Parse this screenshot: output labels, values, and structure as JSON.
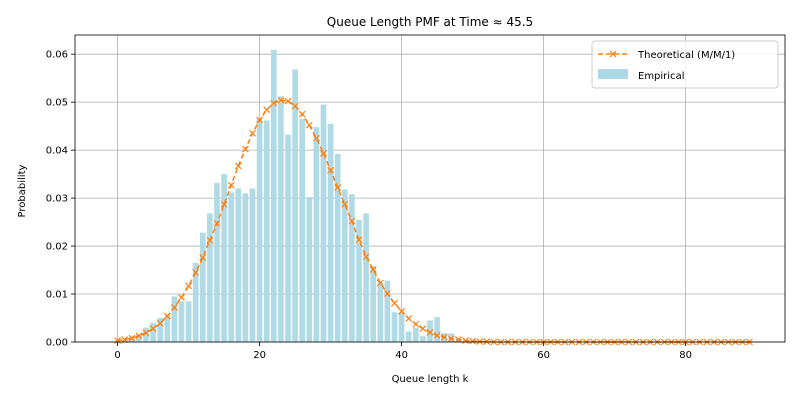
{
  "chart_data": {
    "type": "bar",
    "title": "Queue Length PMF at Time ≈ 45.5",
    "xlabel": "Queue length k",
    "ylabel": "Probability",
    "xlim": [
      -6,
      94
    ],
    "ylim": [
      0,
      0.064
    ],
    "xticks": [
      0,
      20,
      40,
      60,
      80
    ],
    "yticks": [
      0.0,
      0.01,
      0.02,
      0.03,
      0.04,
      0.05,
      0.06
    ],
    "ytick_labels": [
      "0.00",
      "0.01",
      "0.02",
      "0.03",
      "0.04",
      "0.05",
      "0.06"
    ],
    "grid": true,
    "legend_position": "top-right",
    "series": [
      {
        "name": "Empirical",
        "kind": "bar",
        "color": "#add8e6",
        "x": [
          0,
          1,
          2,
          3,
          4,
          5,
          6,
          7,
          8,
          9,
          10,
          11,
          12,
          13,
          14,
          15,
          16,
          17,
          18,
          19,
          20,
          21,
          22,
          23,
          24,
          25,
          26,
          27,
          28,
          29,
          30,
          31,
          32,
          33,
          34,
          35,
          36,
          37,
          38,
          39,
          40,
          41,
          42,
          43,
          44,
          45,
          46,
          47,
          48,
          49,
          50
        ],
        "values": [
          0.0003,
          0.0004,
          0.001,
          0.0016,
          0.003,
          0.004,
          0.005,
          0.0055,
          0.0095,
          0.0085,
          0.0085,
          0.0165,
          0.0228,
          0.0268,
          0.0332,
          0.035,
          0.0312,
          0.032,
          0.031,
          0.032,
          0.0465,
          0.0462,
          0.0609,
          0.0512,
          0.0432,
          0.0568,
          0.0465,
          0.0302,
          0.0448,
          0.0495,
          0.0455,
          0.0392,
          0.0318,
          0.0308,
          0.0255,
          0.0268,
          0.0158,
          0.0125,
          0.0128,
          0.0062,
          0.0062,
          0.0022,
          0.003,
          0.0012,
          0.0045,
          0.0052,
          0.0018,
          0.0018,
          0.0008,
          0.0005,
          0.0003
        ]
      },
      {
        "name": "Theoretical (M/M/1)",
        "kind": "line",
        "color": "#ff7f0e",
        "x": [
          0,
          1,
          2,
          3,
          4,
          5,
          6,
          7,
          8,
          9,
          10,
          11,
          12,
          13,
          14,
          15,
          16,
          17,
          18,
          19,
          20,
          21,
          22,
          23,
          24,
          25,
          26,
          27,
          28,
          29,
          30,
          31,
          32,
          33,
          34,
          35,
          36,
          37,
          38,
          39,
          40,
          41,
          42,
          43,
          44,
          45,
          46,
          47,
          48,
          49,
          50,
          51,
          52,
          53,
          54,
          55,
          56,
          57,
          58,
          59,
          60,
          61,
          62,
          63,
          64,
          65,
          66,
          67,
          68,
          69,
          70,
          71,
          72,
          73,
          74,
          75,
          76,
          77,
          78,
          79,
          80,
          81,
          82,
          83,
          84,
          85,
          86,
          87,
          88,
          89
        ],
        "values": [
          0.0003,
          0.0005,
          0.0008,
          0.0013,
          0.0019,
          0.0028,
          0.0039,
          0.0054,
          0.0072,
          0.0093,
          0.0117,
          0.0145,
          0.0176,
          0.0212,
          0.0247,
          0.0287,
          0.0327,
          0.0367,
          0.0402,
          0.0435,
          0.0463,
          0.0484,
          0.0498,
          0.0504,
          0.0502,
          0.0492,
          0.0475,
          0.0452,
          0.0425,
          0.0393,
          0.0358,
          0.0322,
          0.0287,
          0.0252,
          0.0213,
          0.0178,
          0.0151,
          0.0123,
          0.0101,
          0.0081,
          0.0064,
          0.0049,
          0.0037,
          0.0028,
          0.002,
          0.0014,
          0.001,
          0.0007,
          0.0005,
          0.0003,
          0.0002,
          0.0001,
          0.0001,
          0,
          0,
          0,
          0,
          0,
          0,
          0,
          0,
          0,
          0,
          0,
          0,
          0,
          0,
          0,
          0,
          0,
          0,
          0,
          0,
          0,
          0,
          0,
          0,
          0,
          0,
          0,
          0,
          0,
          0,
          0,
          0,
          0,
          0,
          0,
          0,
          0
        ]
      }
    ]
  }
}
